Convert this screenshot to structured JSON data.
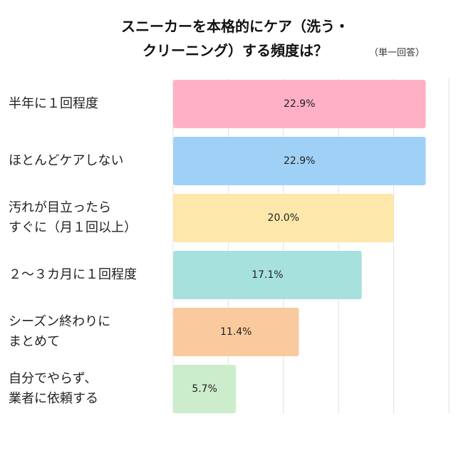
{
  "chart_data": {
    "type": "bar",
    "orientation": "horizontal",
    "title": "スニーカーを本格的にケア（洗う・\nクリーニング）する頻度は？",
    "subtitle": "（単一回答）",
    "categories": [
      "半年に１回程度",
      "ほとんどケアしない",
      "汚れが目立ったら\nすぐに（月１回以上）",
      "２～３カ月に１回程度",
      "シーズン終わりに\nまとめて",
      "自分でやらず、\n業者に依頼する"
    ],
    "values": [
      22.9,
      22.9,
      20.0,
      17.1,
      11.4,
      5.7
    ],
    "value_labels": [
      "22.9%",
      "22.9%",
      "20.0%",
      "17.1%",
      "11.4%",
      "5.7%"
    ],
    "colors": [
      "#ffb0c4",
      "#9fd1f6",
      "#fde7ab",
      "#a7e1dd",
      "#f9ca9d",
      "#cbedcb"
    ],
    "xlim": [
      0,
      25
    ],
    "xticks": [
      0,
      5,
      10,
      15,
      20,
      25
    ],
    "grid": true
  }
}
